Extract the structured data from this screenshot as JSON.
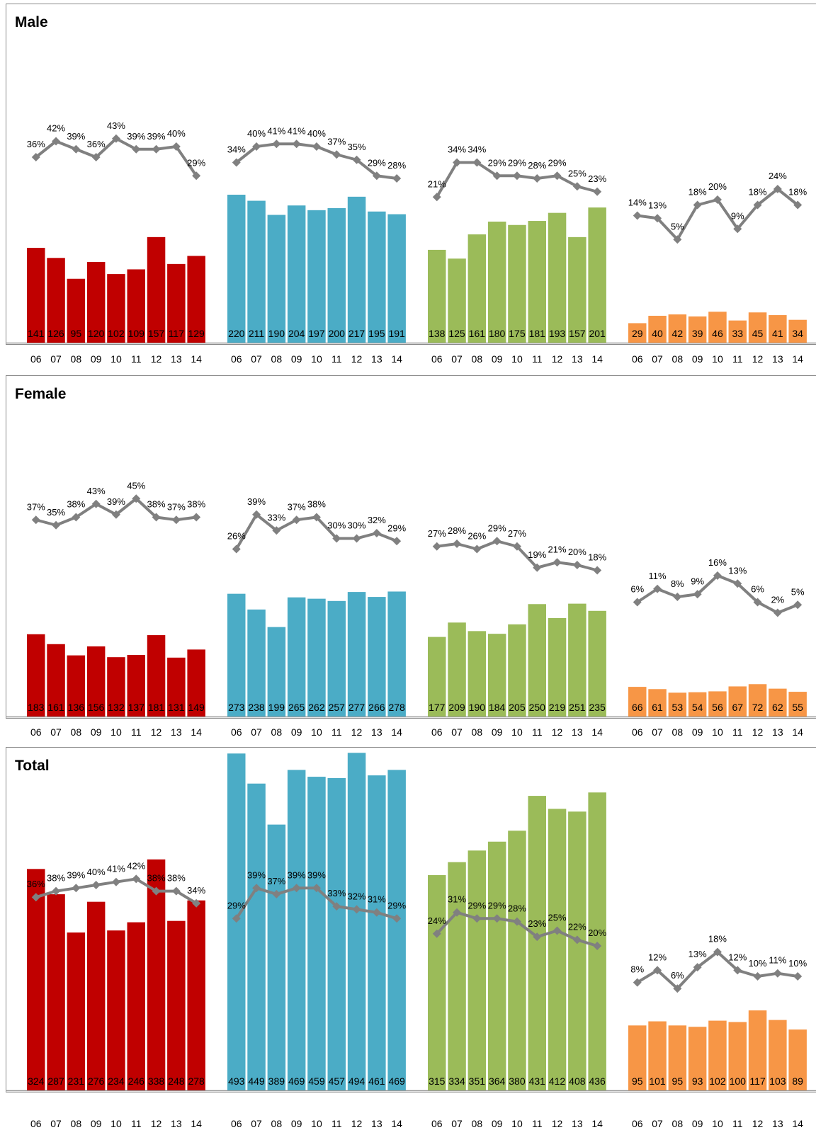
{
  "colors": {
    "line": "#808080",
    "groups": [
      "#c00000",
      "#4bacc6",
      "#9bbb59",
      "#f79646"
    ]
  },
  "chart_data": [
    {
      "type": "bar",
      "title": "Male",
      "categories": [
        "06",
        "07",
        "08",
        "09",
        "10",
        "11",
        "12",
        "13",
        "14"
      ],
      "groups": [
        {
          "values": [
            141,
            126,
            95,
            120,
            102,
            109,
            157,
            117,
            129
          ],
          "percents": [
            36,
            42,
            39,
            36,
            43,
            39,
            39,
            40,
            29
          ]
        },
        {
          "values": [
            220,
            211,
            190,
            204,
            197,
            200,
            217,
            195,
            191
          ],
          "percents": [
            34,
            40,
            41,
            41,
            40,
            37,
            35,
            29,
            28
          ]
        },
        {
          "values": [
            138,
            125,
            161,
            180,
            175,
            181,
            193,
            157,
            201
          ],
          "percents": [
            21,
            34,
            34,
            29,
            29,
            28,
            29,
            25,
            23
          ]
        },
        {
          "values": [
            29,
            40,
            42,
            39,
            46,
            33,
            45,
            41,
            34
          ],
          "percents": [
            14,
            13,
            5,
            18,
            20,
            9,
            18,
            24,
            18
          ]
        }
      ]
    },
    {
      "type": "bar",
      "title": "Female",
      "categories": [
        "06",
        "07",
        "08",
        "09",
        "10",
        "11",
        "12",
        "13",
        "14"
      ],
      "groups": [
        {
          "values": [
            183,
            161,
            136,
            156,
            132,
            137,
            181,
            131,
            149
          ],
          "percents": [
            37,
            35,
            38,
            43,
            39,
            45,
            38,
            37,
            38
          ]
        },
        {
          "values": [
            273,
            238,
            199,
            265,
            262,
            257,
            277,
            266,
            278
          ],
          "percents": [
            26,
            39,
            33,
            37,
            38,
            30,
            30,
            32,
            29
          ]
        },
        {
          "values": [
            177,
            209,
            190,
            184,
            205,
            250,
            219,
            251,
            235
          ],
          "percents": [
            27,
            28,
            26,
            29,
            27,
            19,
            21,
            20,
            18
          ]
        },
        {
          "values": [
            66,
            61,
            53,
            54,
            56,
            67,
            72,
            62,
            55
          ],
          "percents": [
            6,
            11,
            8,
            9,
            16,
            13,
            6,
            2,
            5
          ]
        }
      ]
    },
    {
      "type": "bar",
      "title": "Total",
      "categories": [
        "06",
        "07",
        "08",
        "09",
        "10",
        "11",
        "12",
        "13",
        "14"
      ],
      "groups": [
        {
          "values": [
            324,
            287,
            231,
            276,
            234,
            246,
            338,
            248,
            278
          ],
          "percents": [
            36,
            38,
            39,
            40,
            41,
            42,
            38,
            38,
            34
          ]
        },
        {
          "values": [
            493,
            449,
            389,
            469,
            459,
            457,
            494,
            461,
            469
          ],
          "percents": [
            29,
            39,
            37,
            39,
            39,
            33,
            32,
            31,
            29
          ]
        },
        {
          "values": [
            315,
            334,
            351,
            364,
            380,
            431,
            412,
            408,
            436
          ],
          "percents": [
            24,
            31,
            29,
            29,
            28,
            23,
            25,
            22,
            20
          ]
        },
        {
          "values": [
            95,
            101,
            95,
            93,
            102,
            100,
            117,
            103,
            89
          ],
          "percents": [
            8,
            12,
            6,
            13,
            18,
            12,
            10,
            11,
            10
          ]
        }
      ]
    }
  ]
}
